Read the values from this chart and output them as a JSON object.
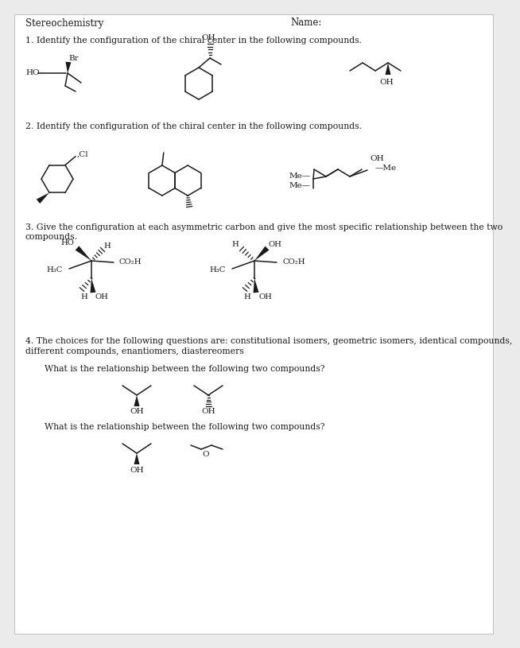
{
  "title_left": "Stereochemistry",
  "title_right": "Name:",
  "bg_color": "#ebebeb",
  "page_color": "#ffffff",
  "text_color": "#1a1a1a",
  "line_color": "#1a1a1a",
  "q1_text": "1. Identify the configuration of the chiral center in the following compounds.",
  "q2_text": "2. Identify the configuration of the chiral center in the following compounds.",
  "q3_text1": "3. Give the configuration at each asymmetric carbon and give the most specific relationship between the two",
  "q3_text2": "compounds.",
  "q4_text1": "4. The choices for the following questions are: constitutional isomers, geometric isomers, identical compounds,",
  "q4_text2": "different compounds, enantiomers, diastereomers",
  "q4_sub1": "What is the relationship between the following two compounds?",
  "q4_sub2": "What is the relationship between the following two compounds?"
}
